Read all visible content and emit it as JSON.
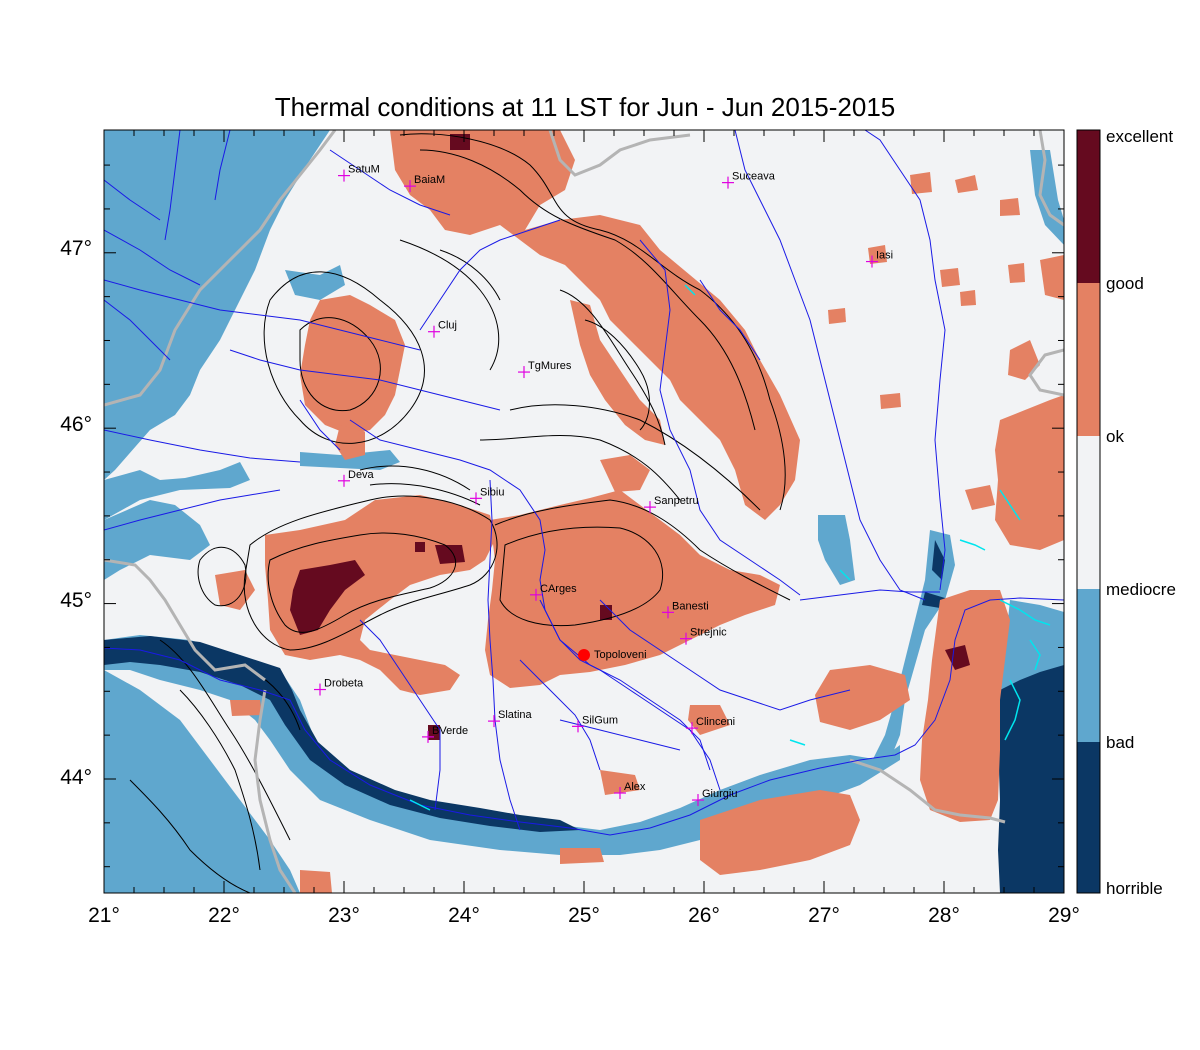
{
  "title": "Thermal conditions at 11 LST for Jun - Jun  2015-2015",
  "colors": {
    "horrible": "#0b3764",
    "bad": "#5fa7ce",
    "mediocre": "#f2f3f5",
    "ok": "#f2f3f5",
    "good": "#e48163",
    "excellent": "#650a1f",
    "river": "#1a1ae6",
    "border": "#b4b4b4",
    "cities": "#e000e0",
    "marker": "#ff0000",
    "lakes": "#00e5ee"
  },
  "lon_ticks": [
    "21°",
    "22°",
    "23°",
    "24°",
    "25°",
    "26°",
    "27°",
    "28°",
    "29°"
  ],
  "lat_ticks": [
    "44°",
    "45°",
    "46°",
    "47°"
  ],
  "legend": [
    "excellent",
    "good",
    "ok",
    "mediocre",
    "bad",
    "horrible"
  ],
  "cities": [
    {
      "name": "SatuM",
      "lon": 23.0,
      "lat": 47.44
    },
    {
      "name": "BaiaM",
      "lon": 23.55,
      "lat": 47.38
    },
    {
      "name": "Suceava",
      "lon": 26.2,
      "lat": 47.4
    },
    {
      "name": "Iasi",
      "lon": 27.4,
      "lat": 46.95
    },
    {
      "name": "Cluj",
      "lon": 23.75,
      "lat": 46.55
    },
    {
      "name": "TgMures",
      "lon": 24.5,
      "lat": 46.32
    },
    {
      "name": "Deva",
      "lon": 23.0,
      "lat": 45.7
    },
    {
      "name": "Sibiu",
      "lon": 24.1,
      "lat": 45.6
    },
    {
      "name": "Sanpetru",
      "lon": 25.55,
      "lat": 45.55
    },
    {
      "name": "CArges",
      "lon": 24.6,
      "lat": 45.05
    },
    {
      "name": "Banesti",
      "lon": 25.7,
      "lat": 44.95
    },
    {
      "name": "Strejnic",
      "lon": 25.85,
      "lat": 44.8
    },
    {
      "name": "Drobeta",
      "lon": 22.8,
      "lat": 44.51
    },
    {
      "name": "BVerde",
      "lon": 23.7,
      "lat": 44.24
    },
    {
      "name": "Slatina",
      "lon": 24.25,
      "lat": 44.33
    },
    {
      "name": "SilGum",
      "lon": 24.95,
      "lat": 44.3
    },
    {
      "name": "Clinceni",
      "lon": 25.9,
      "lat": 44.29
    },
    {
      "name": "Alex",
      "lon": 25.3,
      "lat": 43.92
    },
    {
      "name": "Giurgiu",
      "lon": 25.95,
      "lat": 43.88
    }
  ],
  "marker": {
    "name": "Topoloveni",
    "lon": 25.0,
    "lat": 44.69
  }
}
